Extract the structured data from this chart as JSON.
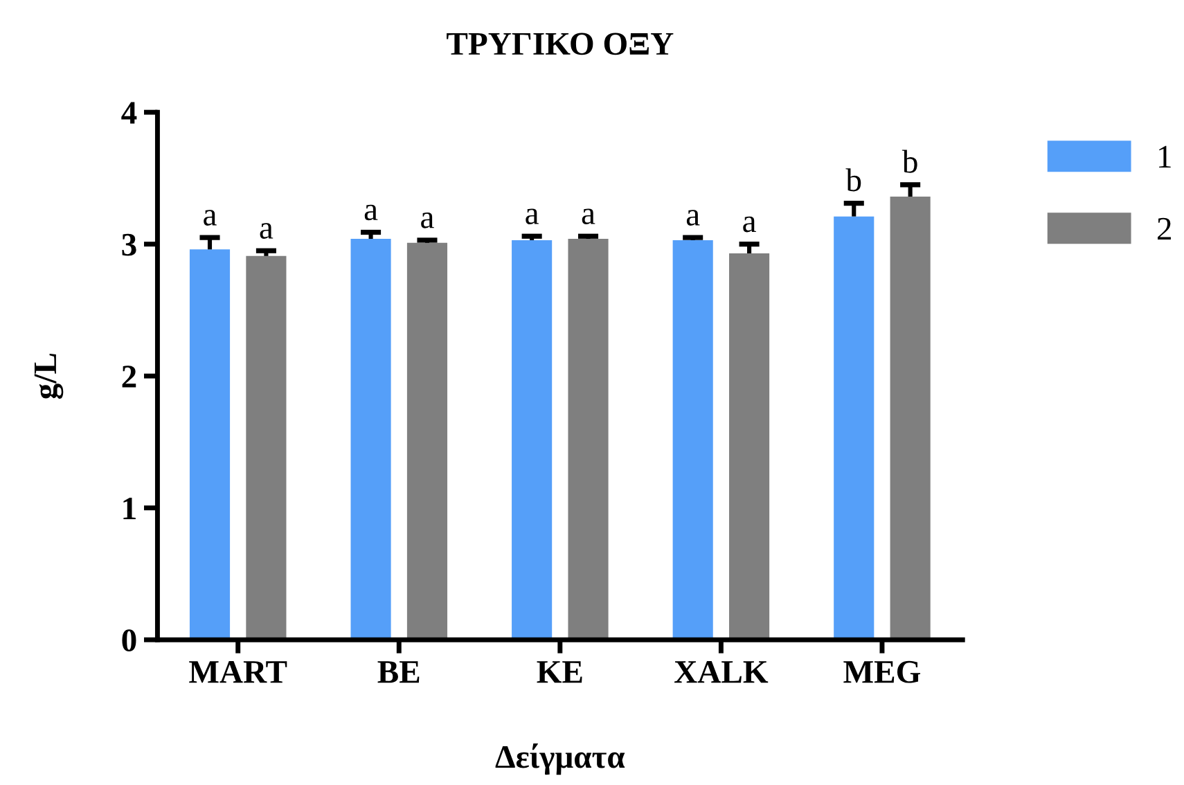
{
  "chart_data": {
    "type": "bar",
    "title": "ΤΡΥΓΙΚΟ ΟΞΥ",
    "xlabel": "Δείγματα",
    "ylabel": "g/L",
    "categories": [
      "MART",
      "BE",
      "KE",
      "XALK",
      "MEG"
    ],
    "series": [
      {
        "name": "1",
        "color": "#559ff9",
        "values": [
          2.96,
          3.04,
          3.03,
          3.03,
          3.21
        ],
        "errors": [
          [
            2.96,
            3.05
          ],
          [
            3.04,
            3.09
          ],
          [
            3.03,
            3.06
          ],
          [
            3.03,
            3.05
          ],
          [
            3.21,
            3.31
          ]
        ],
        "value_labels": [
          "a",
          "a",
          "a",
          "a",
          "b"
        ]
      },
      {
        "name": "2",
        "color": "#7f7f7f",
        "values": [
          2.91,
          3.01,
          3.04,
          2.93,
          3.36
        ],
        "errors": [
          [
            2.91,
            2.95
          ],
          [
            3.01,
            3.03
          ],
          [
            3.04,
            3.06
          ],
          [
            2.93,
            3.0
          ],
          [
            3.36,
            3.45
          ]
        ],
        "value_labels": [
          "a",
          "a",
          "a",
          "a",
          "b"
        ]
      }
    ],
    "ylim": [
      0,
      4
    ],
    "yticks": [
      0,
      1,
      2,
      3,
      4
    ],
    "grid": false,
    "legend": "top right"
  }
}
